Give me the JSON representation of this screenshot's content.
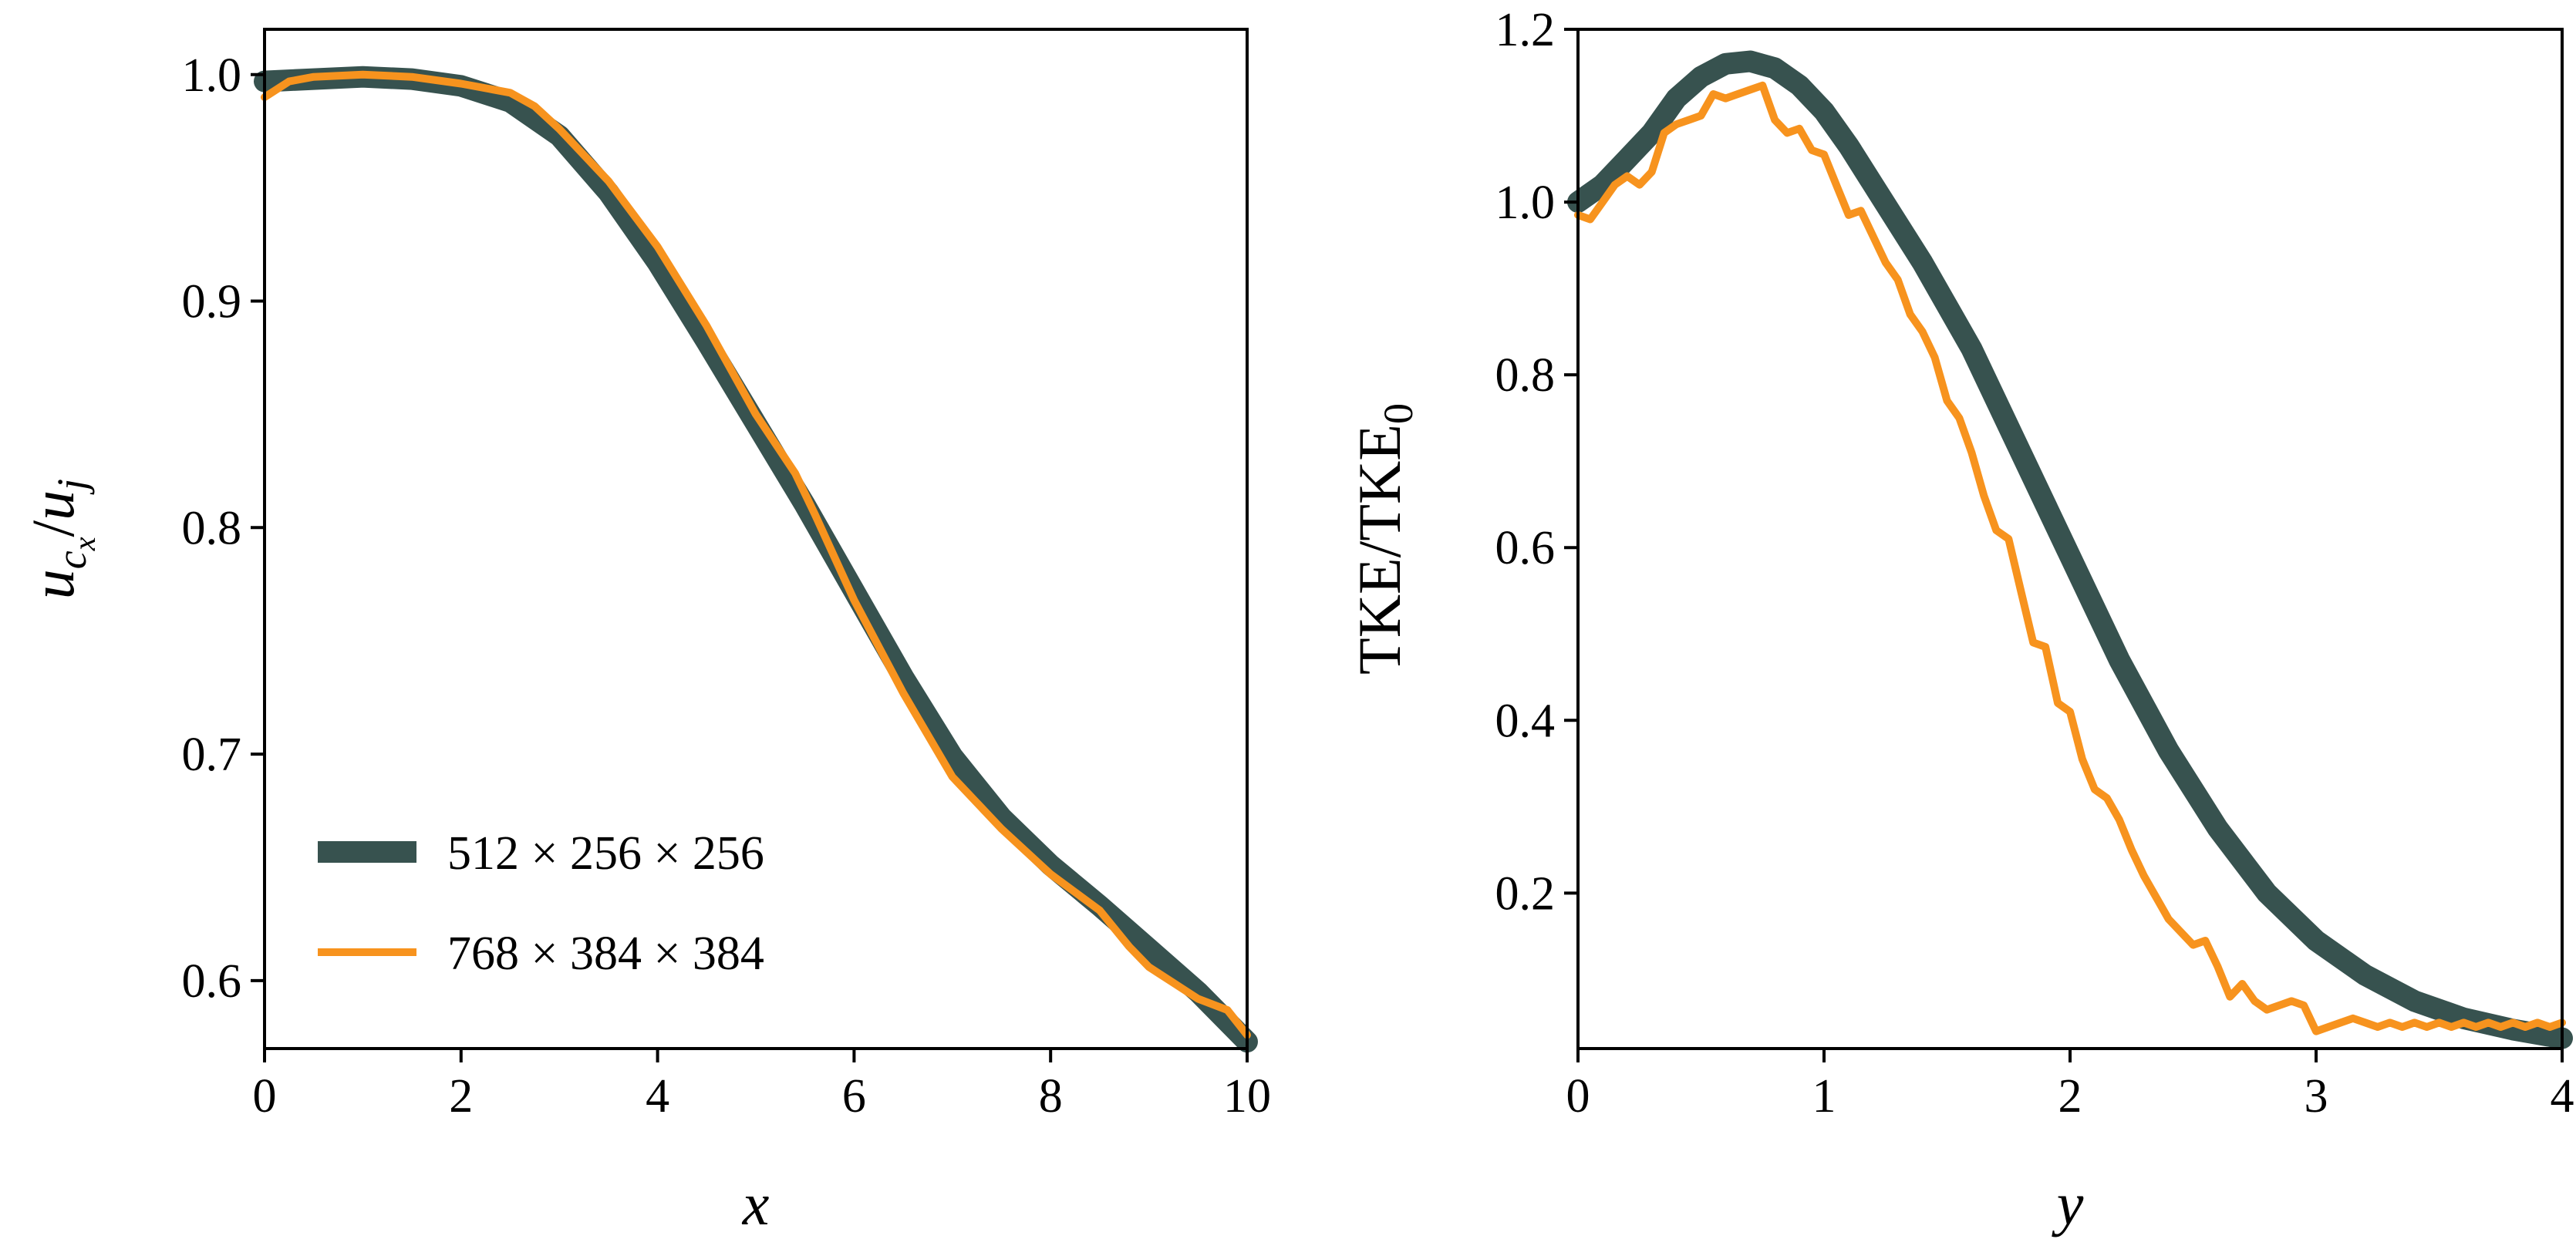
{
  "colors": {
    "dark": "#37524F",
    "orange": "#F7931E"
  },
  "chart_data": [
    {
      "type": "line",
      "xlabel": "x",
      "ylabel": "u_{c_x}/u_j",
      "xlim": [
        0,
        10
      ],
      "ylim": [
        0.57,
        1.02
      ],
      "xticks": [
        0,
        2,
        4,
        6,
        8,
        10
      ],
      "yticks": [
        0.6,
        0.7,
        0.8,
        0.9,
        1.0
      ],
      "xtick_labels": [
        "0",
        "2",
        "4",
        "6",
        "8",
        "10"
      ],
      "ytick_labels": [
        "0.6",
        "0.7",
        "0.8",
        "0.9",
        "1.0"
      ],
      "legend": {
        "placement": "lower-left",
        "entries": [
          "512 × 256 × 256",
          "768 × 384 × 384"
        ]
      },
      "series": [
        {
          "name": "512 × 256 × 256",
          "color": "#37524F",
          "x": [
            0,
            0.5,
            1,
            1.5,
            2,
            2.5,
            3,
            3.5,
            4,
            4.5,
            5,
            5.5,
            6,
            6.5,
            7,
            7.5,
            8,
            8.5,
            9,
            9.5,
            10
          ],
          "y": [
            0.997,
            0.998,
            0.999,
            0.998,
            0.995,
            0.988,
            0.973,
            0.948,
            0.917,
            0.882,
            0.846,
            0.81,
            0.772,
            0.734,
            0.699,
            0.672,
            0.651,
            0.633,
            0.614,
            0.595,
            0.573
          ]
        },
        {
          "name": "768 × 384 × 384",
          "color": "#F7931E",
          "x": [
            0,
            0.25,
            0.5,
            1,
            1.5,
            2,
            2.5,
            2.75,
            3,
            3.5,
            4,
            4.5,
            5,
            5.4,
            5.6,
            6,
            6.5,
            7,
            7.5,
            8,
            8.5,
            8.8,
            9,
            9.5,
            9.8,
            10
          ],
          "y": [
            0.99,
            0.997,
            0.999,
            1.0,
            0.999,
            0.996,
            0.992,
            0.986,
            0.976,
            0.953,
            0.924,
            0.889,
            0.85,
            0.824,
            0.806,
            0.768,
            0.727,
            0.69,
            0.667,
            0.647,
            0.631,
            0.615,
            0.606,
            0.592,
            0.587,
            0.576
          ]
        }
      ]
    },
    {
      "type": "line",
      "xlabel": "y",
      "ylabel": "TKE/TKE_0",
      "xlim": [
        0,
        4
      ],
      "ylim": [
        0.02,
        1.2
      ],
      "xticks": [
        0,
        1,
        2,
        3,
        4
      ],
      "yticks": [
        0.2,
        0.4,
        0.6,
        0.8,
        1.0,
        1.2
      ],
      "xtick_labels": [
        "0",
        "1",
        "2",
        "3",
        "4"
      ],
      "ytick_labels": [
        "0.2",
        "0.4",
        "0.6",
        "0.8",
        "1.0",
        "1.2"
      ],
      "series": [
        {
          "name": "512 × 256 × 256",
          "color": "#37524F",
          "x": [
            0,
            0.1,
            0.2,
            0.3,
            0.4,
            0.5,
            0.6,
            0.7,
            0.8,
            0.9,
            1.0,
            1.1,
            1.2,
            1.4,
            1.6,
            1.8,
            2.0,
            2.2,
            2.4,
            2.6,
            2.8,
            3.0,
            3.2,
            3.4,
            3.6,
            3.8,
            4.0
          ],
          "y": [
            1.0,
            1.02,
            1.05,
            1.08,
            1.12,
            1.145,
            1.16,
            1.163,
            1.155,
            1.135,
            1.105,
            1.065,
            1.02,
            0.93,
            0.83,
            0.71,
            0.59,
            0.47,
            0.365,
            0.275,
            0.2,
            0.145,
            0.105,
            0.075,
            0.055,
            0.042,
            0.032
          ]
        },
        {
          "name": "768 × 384 × 384",
          "color": "#F7931E",
          "x": [
            0,
            0.05,
            0.1,
            0.15,
            0.2,
            0.25,
            0.3,
            0.35,
            0.4,
            0.45,
            0.5,
            0.55,
            0.6,
            0.65,
            0.7,
            0.75,
            0.8,
            0.85,
            0.9,
            0.95,
            1.0,
            1.05,
            1.1,
            1.15,
            1.2,
            1.25,
            1.3,
            1.35,
            1.4,
            1.45,
            1.5,
            1.55,
            1.6,
            1.65,
            1.7,
            1.75,
            1.8,
            1.85,
            1.9,
            1.95,
            2.0,
            2.05,
            2.1,
            2.15,
            2.2,
            2.25,
            2.3,
            2.35,
            2.4,
            2.45,
            2.5,
            2.55,
            2.6,
            2.65,
            2.7,
            2.75,
            2.8,
            2.85,
            2.9,
            2.95,
            3.0,
            3.05,
            3.1,
            3.15,
            3.2,
            3.25,
            3.3,
            3.35,
            3.4,
            3.45,
            3.5,
            3.55,
            3.6,
            3.65,
            3.7,
            3.75,
            3.8,
            3.85,
            3.9,
            3.95,
            4.0
          ],
          "y": [
            0.985,
            0.98,
            1.0,
            1.02,
            1.03,
            1.02,
            1.035,
            1.08,
            1.09,
            1.095,
            1.1,
            1.125,
            1.12,
            1.125,
            1.13,
            1.135,
            1.095,
            1.08,
            1.085,
            1.06,
            1.055,
            1.02,
            0.985,
            0.99,
            0.96,
            0.93,
            0.91,
            0.87,
            0.85,
            0.82,
            0.77,
            0.75,
            0.71,
            0.66,
            0.62,
            0.61,
            0.55,
            0.49,
            0.485,
            0.42,
            0.41,
            0.355,
            0.32,
            0.31,
            0.285,
            0.25,
            0.22,
            0.195,
            0.17,
            0.155,
            0.14,
            0.145,
            0.115,
            0.08,
            0.095,
            0.075,
            0.065,
            0.07,
            0.075,
            0.07,
            0.04,
            0.045,
            0.05,
            0.055,
            0.05,
            0.045,
            0.05,
            0.045,
            0.05,
            0.045,
            0.05,
            0.045,
            0.05,
            0.045,
            0.05,
            0.045,
            0.05,
            0.045,
            0.05,
            0.045,
            0.05
          ]
        }
      ]
    }
  ]
}
